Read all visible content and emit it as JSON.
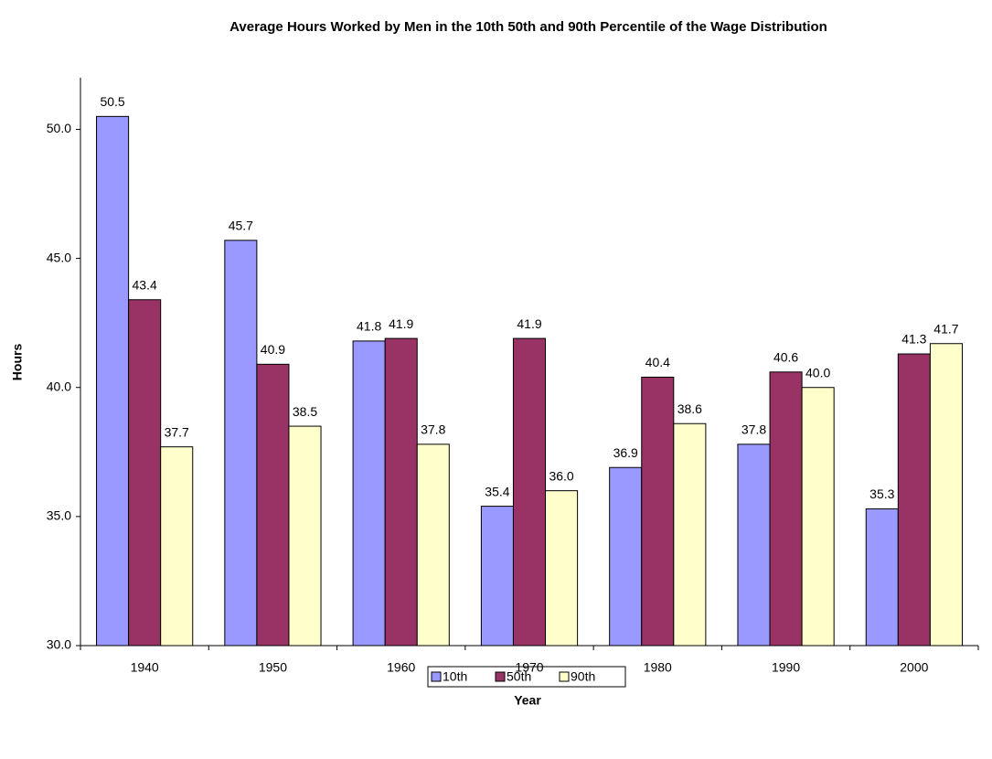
{
  "chart_data": {
    "type": "bar",
    "title": "Average Hours Worked by Men in the 10th 50th and 90th Percentile of the Wage Distribution",
    "x_label": "Year",
    "y_label": "Hours",
    "categories": [
      "1940",
      "1950",
      "1960",
      "1970",
      "1980",
      "1990",
      "2000"
    ],
    "series": [
      {
        "name": "10th",
        "color": "#9999ff",
        "values": [
          50.5,
          45.7,
          41.8,
          35.4,
          36.9,
          37.8,
          35.3
        ],
        "value_labels": [
          "50.5",
          "45.7",
          "41.8",
          "35.4",
          "36.9",
          "37.8",
          "35.3"
        ]
      },
      {
        "name": "50th",
        "color": "#993366",
        "values": [
          43.4,
          40.9,
          41.9,
          41.9,
          40.4,
          40.6,
          41.3
        ],
        "value_labels": [
          "43.4",
          "40.9",
          "41.9",
          "41.9",
          "40.4",
          "40.6",
          "41.3"
        ]
      },
      {
        "name": "90th",
        "color": "#ffffcc",
        "values": [
          37.7,
          38.5,
          37.8,
          36.0,
          38.6,
          40.0,
          41.7
        ],
        "value_labels": [
          "37.7",
          "38.5",
          "37.8",
          "36.0",
          "38.6",
          "40.0",
          "41.7"
        ]
      }
    ],
    "ylim": [
      30,
      52
    ],
    "yticks": [
      {
        "value": 30,
        "label": "30.0"
      },
      {
        "value": 35,
        "label": "35.0"
      },
      {
        "value": 40,
        "label": "40.0"
      },
      {
        "value": 45,
        "label": "45.0"
      },
      {
        "value": 50,
        "label": "50.0"
      }
    ],
    "grid": false,
    "legend": "bottom"
  }
}
